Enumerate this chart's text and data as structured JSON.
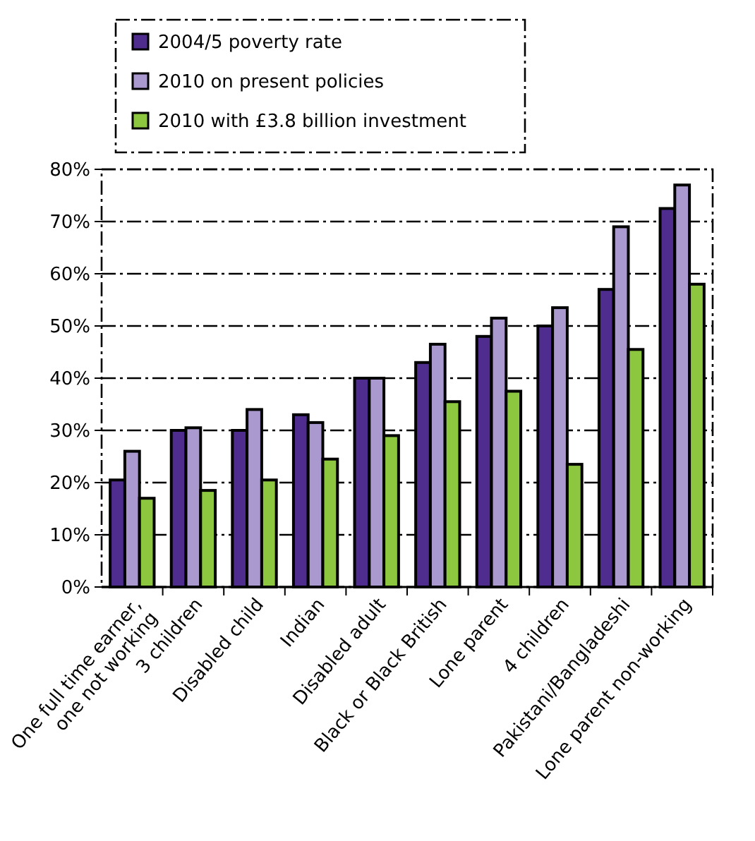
{
  "chart_data": {
    "type": "bar",
    "categories": [
      "One full time earner,\none not working",
      "3 children",
      "Disabled child",
      "Indian",
      "Disabled  adult",
      "Black or Black British",
      "Lone parent",
      "4 children",
      "Pakistani/Bangladeshi",
      "Lone parent non-working"
    ],
    "series": [
      {
        "name": "2004/5 poverty rate",
        "color": "#4f2d8f",
        "values": [
          20.5,
          30,
          30,
          33,
          40,
          43,
          48,
          50,
          57,
          72.5
        ]
      },
      {
        "name": "2010 on present policies",
        "color": "#a999cf",
        "values": [
          26,
          30.5,
          34,
          31.5,
          40,
          46.5,
          51.5,
          53.5,
          69,
          77
        ]
      },
      {
        "name": "2010 with £3.8 billion investment",
        "color": "#8dc63f",
        "values": [
          17,
          18.5,
          20.5,
          24.5,
          29,
          35.5,
          37.5,
          23.5,
          45.5,
          58
        ]
      }
    ],
    "ylim": [
      0,
      80
    ],
    "yticks": [
      {
        "value": 0,
        "label": "0%"
      },
      {
        "value": 10,
        "label": "10%"
      },
      {
        "value": 20,
        "label": "20%"
      },
      {
        "value": 30,
        "label": "30%"
      },
      {
        "value": 40,
        "label": "40%"
      },
      {
        "value": 50,
        "label": "50%"
      },
      {
        "value": 60,
        "label": "60%"
      },
      {
        "value": 70,
        "label": "70%"
      },
      {
        "value": 80,
        "label": "80%"
      }
    ],
    "grid": "y",
    "legend": "top"
  }
}
